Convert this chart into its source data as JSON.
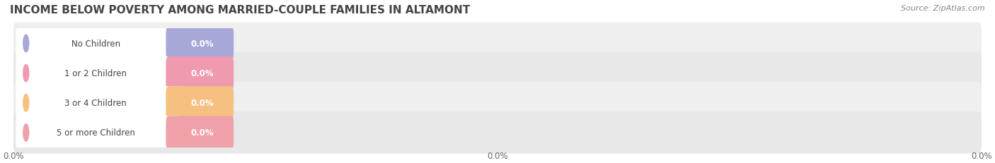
{
  "title": "INCOME BELOW POVERTY AMONG MARRIED-COUPLE FAMILIES IN ALTAMONT",
  "source_text": "Source: ZipAtlas.com",
  "categories": [
    "No Children",
    "1 or 2 Children",
    "3 or 4 Children",
    "5 or more Children"
  ],
  "values": [
    0.0,
    0.0,
    0.0,
    0.0
  ],
  "bar_colors": [
    "#a8a8d8",
    "#f09ab0",
    "#f5c080",
    "#f0a0a8"
  ],
  "label_pill_colors": [
    "#a8a8d8",
    "#f09ab0",
    "#f5c080",
    "#f0a0a8"
  ],
  "background_color": "#ffffff",
  "row_bg_color": "#efefef",
  "row_bg_alt_color": "#e8e8e8",
  "title_fontsize": 11,
  "cat_fontsize": 8.5,
  "value_fontsize": 8.5,
  "source_fontsize": 8,
  "figsize": [
    14.06,
    2.32
  ],
  "dpi": 100,
  "xlim_data": [
    0.0,
    100.0
  ],
  "x_axis_pct": 0.0,
  "xtick_positions": [
    0.0,
    50.0,
    100.0
  ],
  "xtick_labels": [
    "0.0%",
    "0.0%",
    "0.0%"
  ]
}
